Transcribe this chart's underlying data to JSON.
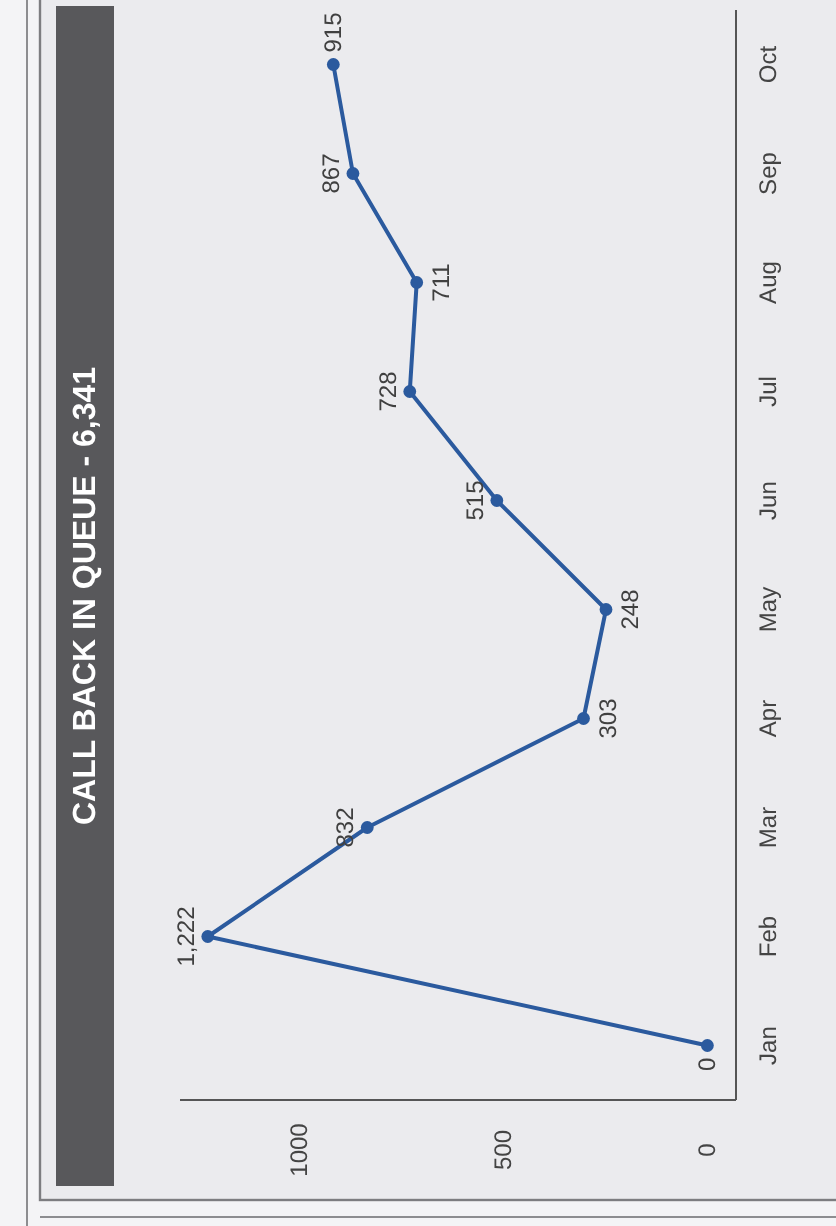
{
  "chart_data": {
    "type": "line",
    "title": "CALL BACK IN QUEUE - 6,341",
    "orientation": "horizontal",
    "categories": [
      "Oct",
      "Sep",
      "Aug",
      "Jul",
      "Jun",
      "May",
      "Apr",
      "Mar",
      "Feb",
      "Jan"
    ],
    "values": [
      915,
      867,
      711,
      728,
      515,
      248,
      303,
      832,
      1222,
      0
    ],
    "value_labels": [
      "915",
      "867",
      "711",
      "728",
      "515",
      "248",
      "303",
      "832",
      "1,222",
      "0"
    ],
    "color": "#2b5a9e",
    "xlim": [
      1290,
      -70
    ],
    "xticks": [
      0,
      500,
      1000
    ],
    "marker": "circle",
    "line_style": "solid"
  }
}
